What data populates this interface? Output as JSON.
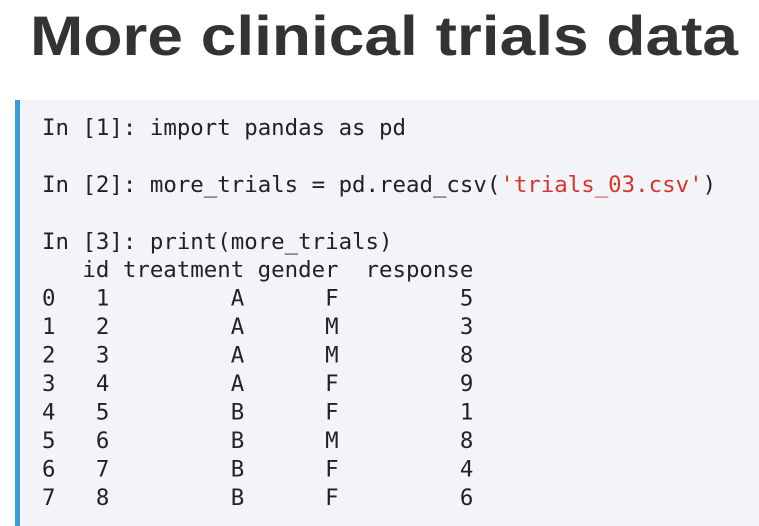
{
  "title": "More clinical trials data",
  "cells": [
    {
      "prompt": "In [1]:",
      "code": "import pandas as pd"
    },
    {
      "prompt": "In [2]:",
      "code": "more_trials = pd.read_csv(",
      "string": "'trials_03.csv'",
      "code_end": ")"
    },
    {
      "prompt": "In [3]:",
      "code": "print(more_trials)"
    }
  ],
  "table": {
    "columns": [
      "id",
      "treatment",
      "gender",
      "response"
    ],
    "index": [
      0,
      1,
      2,
      3,
      4,
      5,
      6,
      7
    ],
    "rows": [
      [
        1,
        "A",
        "F",
        5
      ],
      [
        2,
        "A",
        "M",
        3
      ],
      [
        3,
        "A",
        "M",
        8
      ],
      [
        4,
        "A",
        "F",
        9
      ],
      [
        5,
        "B",
        "F",
        1
      ],
      [
        6,
        "B",
        "M",
        8
      ],
      [
        7,
        "B",
        "F",
        4
      ],
      [
        8,
        "B",
        "F",
        6
      ]
    ]
  }
}
